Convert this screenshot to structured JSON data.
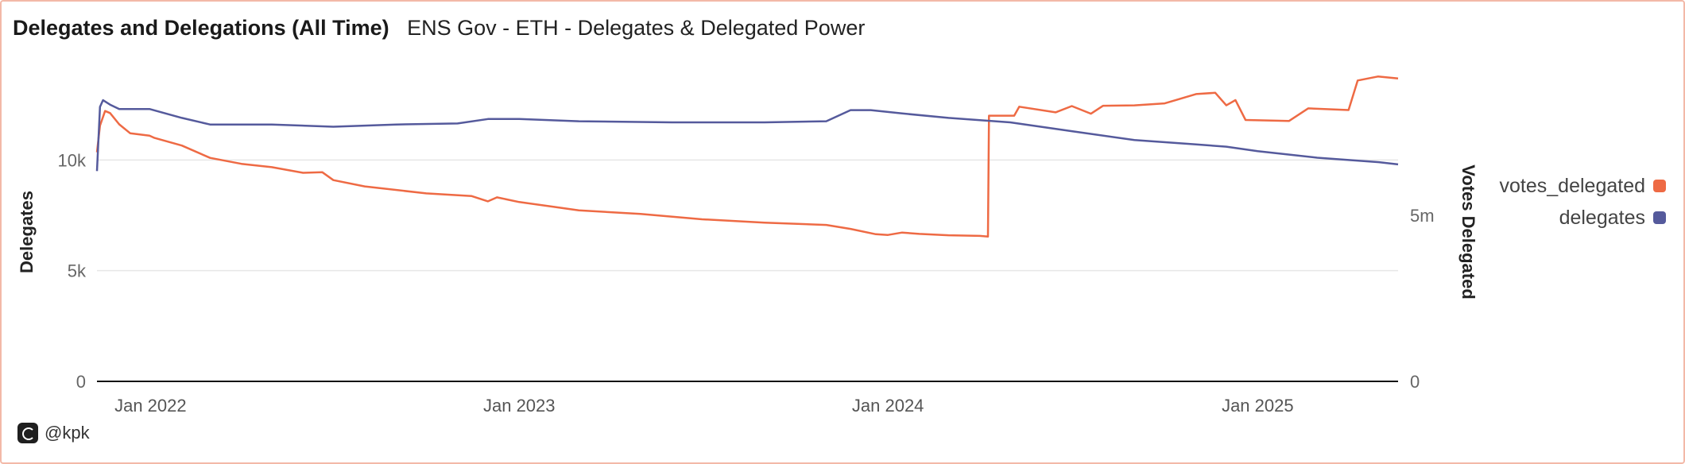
{
  "header": {
    "title": "Delegates and Delegations (All Time)",
    "subtitle": "ENS Gov - ETH - Delegates & Delegated Power"
  },
  "footer": {
    "handle": "@kpk",
    "icon": "dune-logo-icon"
  },
  "colors": {
    "votes_delegated": "#ee6a44",
    "delegates": "#555a9c"
  },
  "chart_data": {
    "type": "line",
    "xlabel": "",
    "ylabel": "Delegates",
    "y2label": "Votes Delegated",
    "x_ticks": [
      "Jan 2022",
      "Jan 2023",
      "Jan 2024",
      "Jan 2025"
    ],
    "y_ticks": [
      "0",
      "5k",
      "10k"
    ],
    "y2_ticks": [
      "0",
      "5m"
    ],
    "ylim": [
      0,
      15000
    ],
    "y2lim": [
      0,
      10000000
    ],
    "legend_position": "right",
    "grid": true,
    "series": [
      {
        "name": "votes_delegated",
        "axis": "right",
        "points": [
          [
            "2021-11-09",
            6900000
          ],
          [
            "2021-11-12",
            7700000
          ],
          [
            "2021-11-17",
            8140000
          ],
          [
            "2021-11-22",
            8080000
          ],
          [
            "2021-12-01",
            7740000
          ],
          [
            "2021-12-12",
            7470000
          ],
          [
            "2021-12-31",
            7400000
          ],
          [
            "2022-01-05",
            7330000
          ],
          [
            "2022-02-01",
            7100000
          ],
          [
            "2022-03-01",
            6730000
          ],
          [
            "2022-04-01",
            6550000
          ],
          [
            "2022-05-01",
            6450000
          ],
          [
            "2022-06-01",
            6280000
          ],
          [
            "2022-06-20",
            6300000
          ],
          [
            "2022-07-01",
            6060000
          ],
          [
            "2022-08-01",
            5870000
          ],
          [
            "2022-10-01",
            5660000
          ],
          [
            "2022-11-15",
            5580000
          ],
          [
            "2022-12-01",
            5420000
          ],
          [
            "2022-12-10",
            5540000
          ],
          [
            "2023-01-01",
            5400000
          ],
          [
            "2023-02-01",
            5270000
          ],
          [
            "2023-03-01",
            5150000
          ],
          [
            "2023-05-01",
            5040000
          ],
          [
            "2023-07-01",
            4880000
          ],
          [
            "2023-09-01",
            4780000
          ],
          [
            "2023-11-01",
            4710000
          ],
          [
            "2023-11-25",
            4590000
          ],
          [
            "2023-12-20",
            4430000
          ],
          [
            "2024-01-01",
            4410000
          ],
          [
            "2024-01-15",
            4480000
          ],
          [
            "2024-02-01",
            4440000
          ],
          [
            "2024-03-01",
            4400000
          ],
          [
            "2024-04-01",
            4380000
          ],
          [
            "2024-04-09",
            4360000
          ],
          [
            "2024-04-10",
            8000000
          ],
          [
            "2024-05-05",
            8000000
          ],
          [
            "2024-05-10",
            8270000
          ],
          [
            "2024-06-15",
            8100000
          ],
          [
            "2024-07-01",
            8290000
          ],
          [
            "2024-07-20",
            8060000
          ],
          [
            "2024-08-01",
            8300000
          ],
          [
            "2024-09-01",
            8310000
          ],
          [
            "2024-10-01",
            8370000
          ],
          [
            "2024-11-01",
            8650000
          ],
          [
            "2024-11-20",
            8690000
          ],
          [
            "2024-12-01",
            8310000
          ],
          [
            "2024-12-10",
            8470000
          ],
          [
            "2024-12-20",
            7870000
          ],
          [
            "2025-02-01",
            7840000
          ],
          [
            "2025-02-20",
            8220000
          ],
          [
            "2025-04-01",
            8170000
          ],
          [
            "2025-04-10",
            9060000
          ],
          [
            "2025-04-30",
            9180000
          ],
          [
            "2025-05-20",
            9120000
          ]
        ]
      },
      {
        "name": "delegates",
        "axis": "left",
        "points": [
          [
            "2021-11-09",
            9500
          ],
          [
            "2021-11-12",
            12400
          ],
          [
            "2021-11-15",
            12700
          ],
          [
            "2021-11-22",
            12500
          ],
          [
            "2021-12-01",
            12300
          ],
          [
            "2021-12-31",
            12300
          ],
          [
            "2022-02-01",
            11900
          ],
          [
            "2022-03-01",
            11600
          ],
          [
            "2022-05-01",
            11600
          ],
          [
            "2022-07-01",
            11500
          ],
          [
            "2022-09-01",
            11600
          ],
          [
            "2022-11-01",
            11650
          ],
          [
            "2022-12-01",
            11850
          ],
          [
            "2023-01-01",
            11850
          ],
          [
            "2023-03-01",
            11750
          ],
          [
            "2023-06-01",
            11700
          ],
          [
            "2023-09-01",
            11700
          ],
          [
            "2023-11-01",
            11750
          ],
          [
            "2023-11-25",
            12250
          ],
          [
            "2023-12-15",
            12250
          ],
          [
            "2024-01-15",
            12100
          ],
          [
            "2024-03-01",
            11900
          ],
          [
            "2024-05-01",
            11700
          ],
          [
            "2024-07-01",
            11300
          ],
          [
            "2024-09-01",
            10900
          ],
          [
            "2024-11-01",
            10700
          ],
          [
            "2024-12-01",
            10600
          ],
          [
            "2025-01-01",
            10400
          ],
          [
            "2025-03-01",
            10100
          ],
          [
            "2025-05-01",
            9900
          ],
          [
            "2025-05-20",
            9800
          ]
        ]
      }
    ]
  }
}
